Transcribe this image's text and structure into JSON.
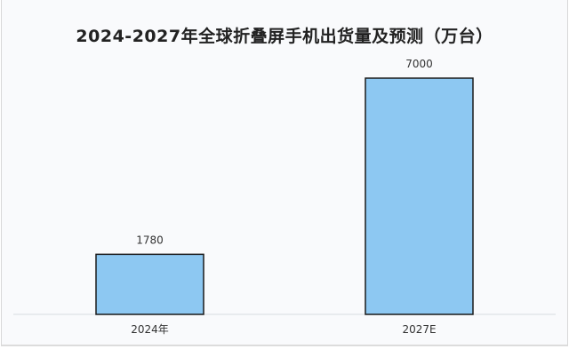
{
  "chart_data": {
    "type": "bar",
    "title": "2024-2027年全球折叠屏手机出货量及预测（万台）",
    "categories": [
      "2024年",
      "2027E"
    ],
    "values": [
      1780,
      7000
    ],
    "data_labels": [
      "1780",
      "7000"
    ],
    "xlabel": "",
    "ylabel": "",
    "ylim": [
      0,
      7000
    ],
    "grid": false,
    "legend": "none",
    "colors": {
      "bar_fill": "#8dc8f2",
      "bar_stroke": "#1a1a1a",
      "baseline": "#e3e6ea",
      "background": "#f9fafc"
    }
  }
}
